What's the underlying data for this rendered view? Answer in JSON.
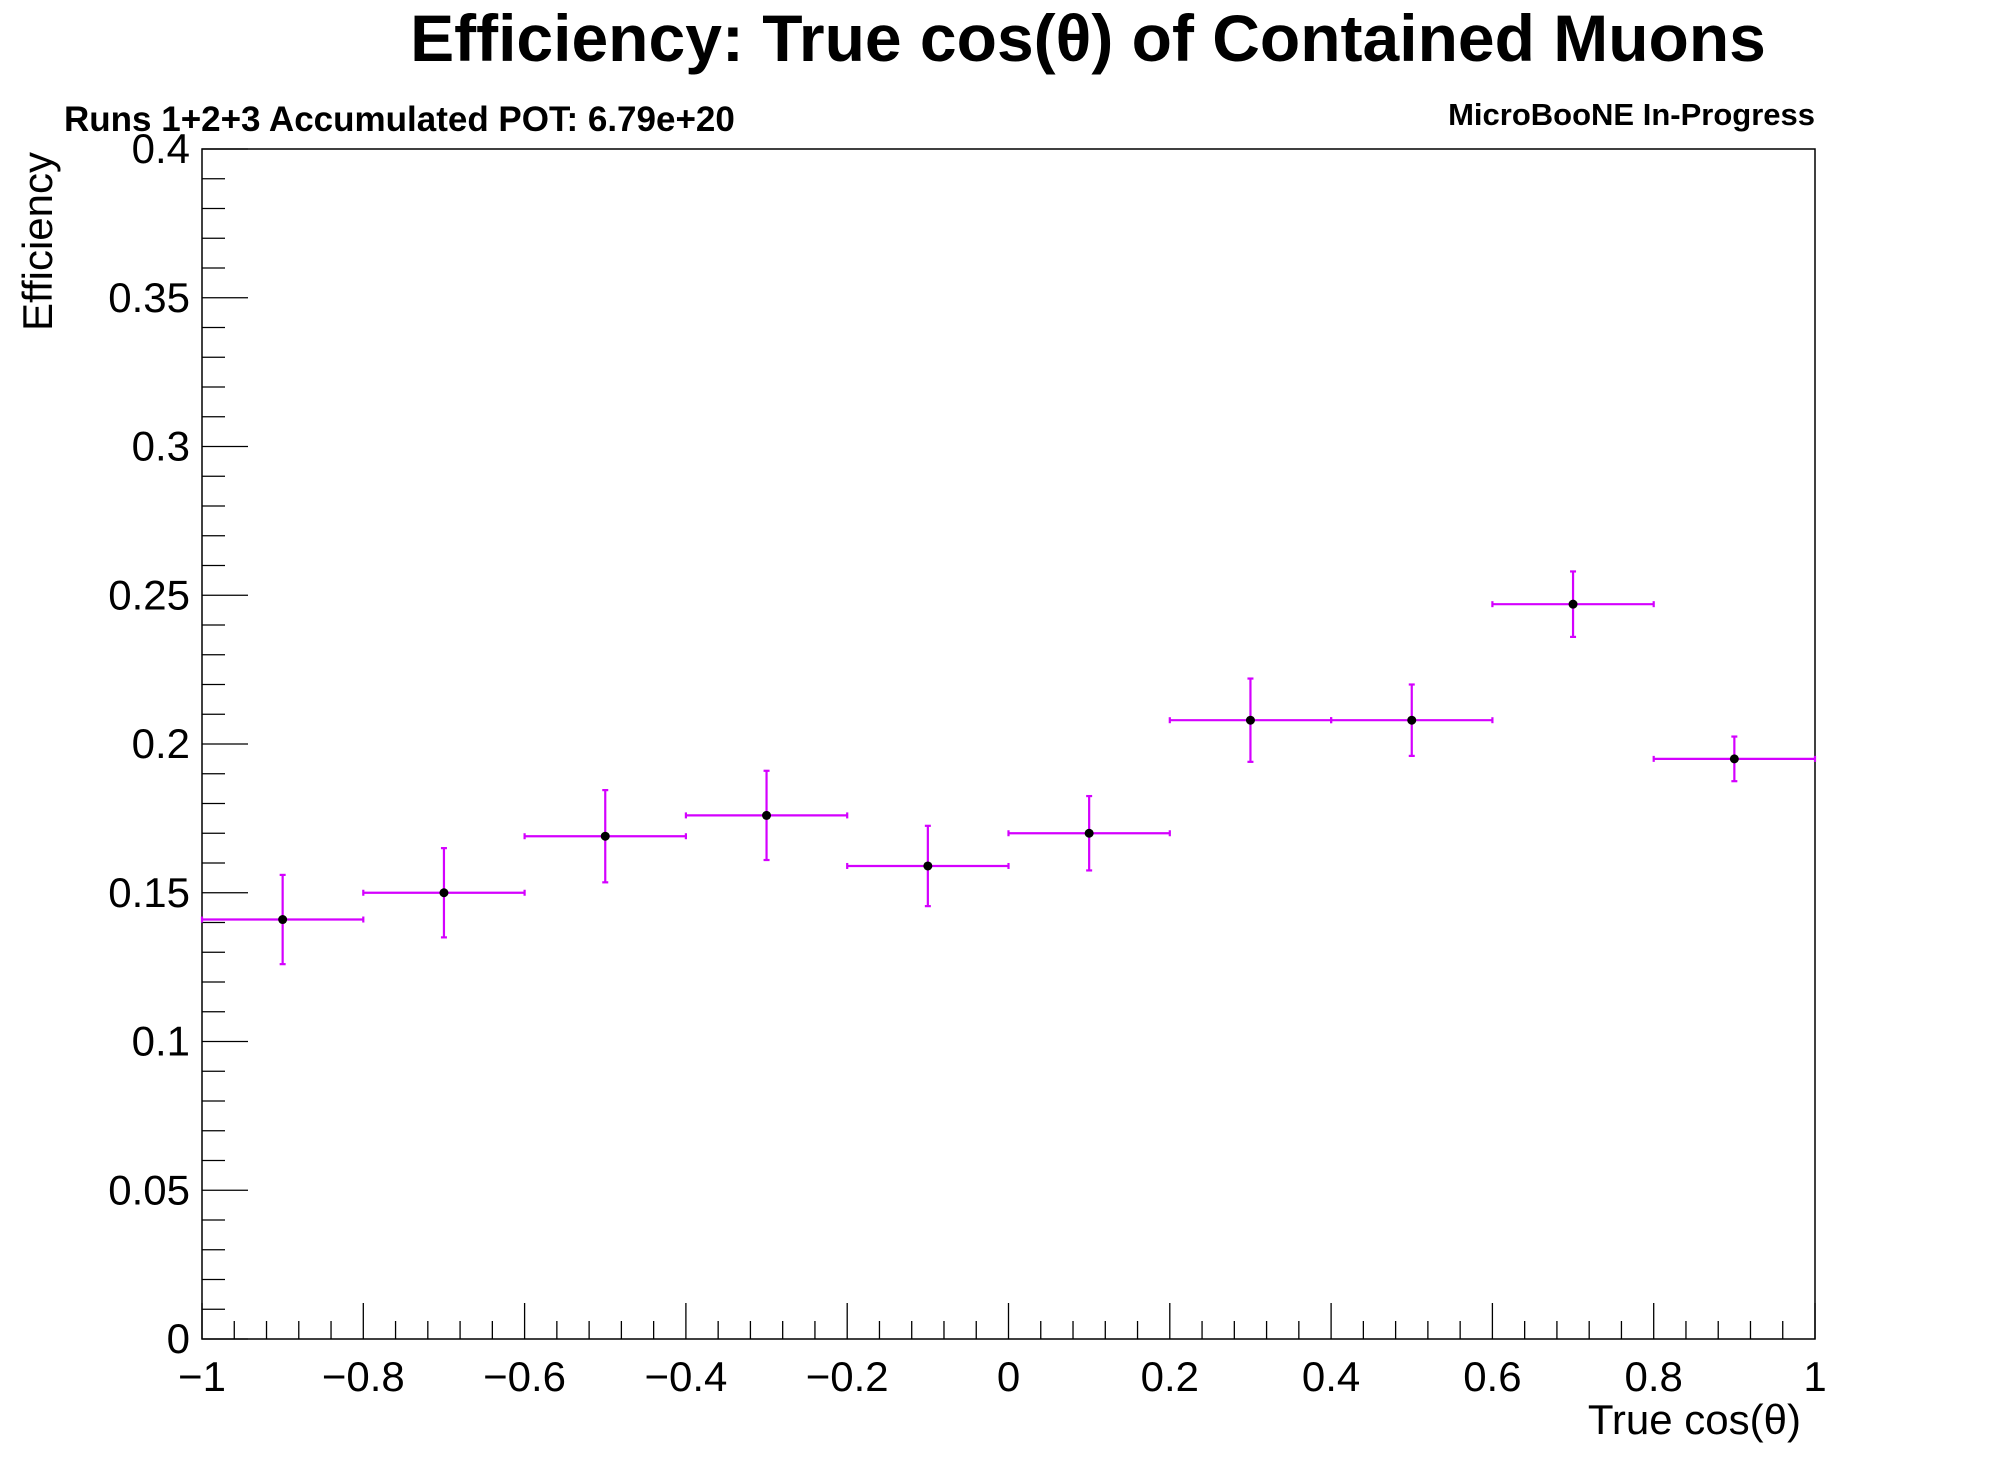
{
  "chart_data": {
    "type": "scatter",
    "title": "Efficiency: True cos(θ) of Contained Muons",
    "subtitle_left": "Runs 1+2+3 Accumulated POT: 6.79e+20",
    "subtitle_right": "MicroBooNE In-Progress",
    "xlabel": "True cos(θ)",
    "ylabel": "Efficiency",
    "xlim": [
      -1,
      1
    ],
    "ylim": [
      0,
      0.4
    ],
    "grid": false,
    "legend": "none",
    "x_ticks": [
      -1,
      -0.8,
      -0.6,
      -0.4,
      -0.2,
      0,
      0.2,
      0.4,
      0.6,
      0.8,
      1
    ],
    "x_tick_labels": [
      "−1",
      "−0.8",
      "−0.6",
      "−0.4",
      "−0.2",
      "0",
      "0.2",
      "0.4",
      "0.6",
      "0.8",
      "1"
    ],
    "y_ticks": [
      0,
      0.05,
      0.1,
      0.15,
      0.2,
      0.25,
      0.3,
      0.35,
      0.4
    ],
    "y_tick_labels": [
      "0",
      "0.05",
      "0.1",
      "0.15",
      "0.2",
      "0.25",
      "0.3",
      "0.35",
      "0.4"
    ],
    "colors": {
      "error_bar": "#d400ff",
      "marker": "#000000"
    },
    "series": [
      {
        "x": [
          -0.9,
          -0.7,
          -0.5,
          -0.3,
          -0.1,
          0.1,
          0.3,
          0.5,
          0.7,
          0.9
        ],
        "x_err": [
          0.1,
          0.1,
          0.1,
          0.1,
          0.1,
          0.1,
          0.1,
          0.1,
          0.1,
          0.1
        ],
        "y": [
          0.141,
          0.15,
          0.169,
          0.176,
          0.159,
          0.17,
          0.208,
          0.208,
          0.247,
          0.195
        ],
        "y_err": [
          0.015,
          0.015,
          0.0155,
          0.015,
          0.0135,
          0.0125,
          0.014,
          0.012,
          0.011,
          0.0075
        ]
      }
    ]
  }
}
